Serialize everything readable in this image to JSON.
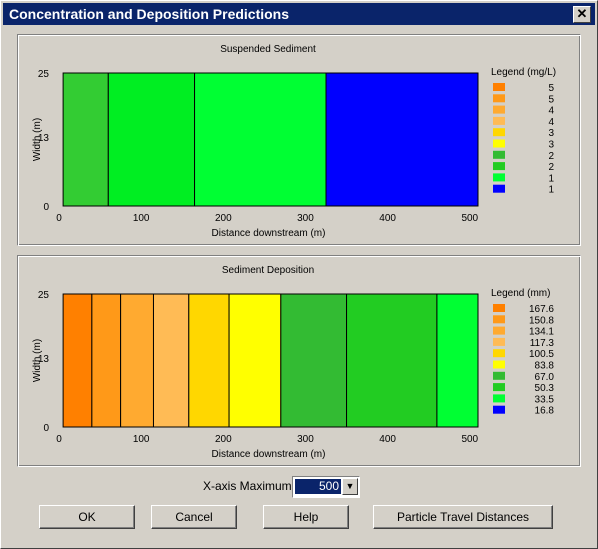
{
  "window": {
    "title": "Concentration and Deposition Predictions",
    "close_label": "✕"
  },
  "xaxis_control": {
    "label": "X-axis Maximum:",
    "value": "500"
  },
  "buttons": {
    "ok": "OK",
    "cancel": "Cancel",
    "help": "Help",
    "particle": "Particle Travel Distances"
  },
  "chart_data": [
    {
      "type": "heatmap",
      "title": "Suspended Sediment",
      "xlabel": "Distance downstream (m)",
      "ylabel": "Width (m)",
      "xlim": [
        0,
        510
      ],
      "ylim": [
        0,
        25
      ],
      "xticks": [
        0,
        100,
        200,
        300,
        400,
        500
      ],
      "yticks": [
        0,
        13,
        25
      ],
      "legend_title": "Legend (mg/L)",
      "legend": [
        {
          "label": "5",
          "color": "#ff8000"
        },
        {
          "label": "5",
          "color": "#ff9918"
        },
        {
          "label": "4",
          "color": "#ffaa30"
        },
        {
          "label": "4",
          "color": "#ffbb55"
        },
        {
          "label": "3",
          "color": "#ffd700"
        },
        {
          "label": "3",
          "color": "#ffff00"
        },
        {
          "label": "2",
          "color": "#33bb33"
        },
        {
          "label": "2",
          "color": "#22cc22"
        },
        {
          "label": "1",
          "color": "#00ff33"
        },
        {
          "label": "1",
          "color": "#0000ff"
        }
      ],
      "segments": [
        {
          "x0": 5,
          "x1": 60,
          "color": "#33cc33"
        },
        {
          "x0": 60,
          "x1": 165,
          "color": "#00ee22"
        },
        {
          "x0": 165,
          "x1": 325,
          "color": "#00ff33"
        },
        {
          "x0": 325,
          "x1": 510,
          "color": "#0000ff"
        }
      ]
    },
    {
      "type": "heatmap",
      "title": "Sediment Deposition",
      "xlabel": "Distance downstream (m)",
      "ylabel": "Width (m)",
      "xlim": [
        0,
        510
      ],
      "ylim": [
        0,
        25
      ],
      "xticks": [
        0,
        100,
        200,
        300,
        400,
        500
      ],
      "yticks": [
        0,
        13,
        25
      ],
      "legend_title": "Legend (mm)",
      "legend": [
        {
          "label": "167.6",
          "color": "#ff8000"
        },
        {
          "label": "150.8",
          "color": "#ff9918"
        },
        {
          "label": "134.1",
          "color": "#ffaa30"
        },
        {
          "label": "117.3",
          "color": "#ffbb55"
        },
        {
          "label": "100.5",
          "color": "#ffd700"
        },
        {
          "label": "83.8",
          "color": "#ffff00"
        },
        {
          "label": "67.0",
          "color": "#33bb33"
        },
        {
          "label": "50.3",
          "color": "#22cc22"
        },
        {
          "label": "33.5",
          "color": "#00ff33"
        },
        {
          "label": "16.8",
          "color": "#0000ff"
        }
      ],
      "segments": [
        {
          "x0": 5,
          "x1": 40,
          "color": "#ff8000"
        },
        {
          "x0": 40,
          "x1": 75,
          "color": "#ff9918"
        },
        {
          "x0": 75,
          "x1": 115,
          "color": "#ffaa30"
        },
        {
          "x0": 115,
          "x1": 158,
          "color": "#ffbb55"
        },
        {
          "x0": 158,
          "x1": 207,
          "color": "#ffd700"
        },
        {
          "x0": 207,
          "x1": 270,
          "color": "#ffff00"
        },
        {
          "x0": 270,
          "x1": 350,
          "color": "#33bb33"
        },
        {
          "x0": 350,
          "x1": 460,
          "color": "#22cc22"
        },
        {
          "x0": 460,
          "x1": 510,
          "color": "#00ff33"
        }
      ]
    }
  ]
}
